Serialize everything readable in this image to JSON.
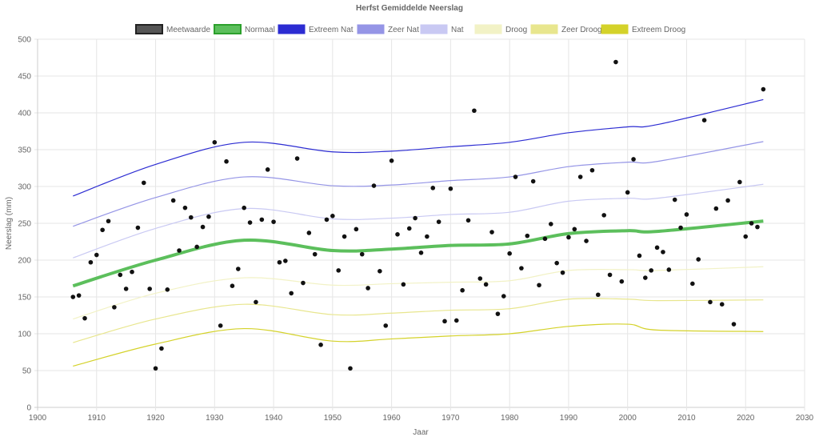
{
  "chart_data": {
    "type": "line",
    "title": "Herfst Gemiddelde Neerslag",
    "xlabel": "Jaar",
    "ylabel": "Neerslag (mm)",
    "xlim": [
      1900,
      2030
    ],
    "ylim": [
      0,
      500
    ],
    "x_ticks": [
      "1900",
      "1910",
      "1920",
      "1930",
      "1940",
      "1950",
      "1960",
      "1970",
      "1980",
      "1990",
      "2000",
      "2010",
      "2020",
      "2030"
    ],
    "y_ticks": [
      "0",
      "50",
      "100",
      "150",
      "200",
      "250",
      "300",
      "350",
      "400",
      "450",
      "500"
    ],
    "grid": true,
    "legend_placement": "top",
    "scatter": {
      "name": "Meetwaarde",
      "color": "#222222",
      "x": [
        1906,
        1907,
        1908,
        1909,
        1910,
        1911,
        1912,
        1913,
        1914,
        1915,
        1916,
        1917,
        1918,
        1919,
        1920,
        1921,
        1922,
        1923,
        1924,
        1925,
        1926,
        1927,
        1928,
        1929,
        1930,
        1931,
        1932,
        1933,
        1934,
        1935,
        1936,
        1937,
        1938,
        1939,
        1940,
        1941,
        1942,
        1943,
        1944,
        1945,
        1946,
        1947,
        1948,
        1949,
        1950,
        1951,
        1952,
        1953,
        1954,
        1955,
        1956,
        1957,
        1958,
        1959,
        1960,
        1961,
        1962,
        1963,
        1964,
        1965,
        1966,
        1967,
        1968,
        1969,
        1970,
        1971,
        1972,
        1973,
        1974,
        1975,
        1976,
        1977,
        1978,
        1979,
        1980,
        1981,
        1982,
        1983,
        1984,
        1985,
        1986,
        1987,
        1988,
        1989,
        1990,
        1991,
        1992,
        1993,
        1994,
        1995,
        1996,
        1997,
        1998,
        1999,
        2000,
        2001,
        2002,
        2003,
        2004,
        2005,
        2006,
        2007,
        2008,
        2009,
        2010,
        2011,
        2012,
        2013,
        2014,
        2015,
        2016,
        2017,
        2018,
        2019,
        2020,
        2021,
        2022,
        2023
      ],
      "y": [
        150,
        152,
        121,
        197,
        207,
        241,
        253,
        136,
        180,
        161,
        184,
        244,
        305,
        161,
        53,
        80,
        160,
        281,
        213,
        271,
        258,
        218,
        245,
        259,
        360,
        111,
        334,
        165,
        188,
        271,
        251,
        143,
        255,
        323,
        252,
        197,
        199,
        155,
        338,
        169,
        237,
        208,
        85,
        255,
        260,
        186,
        232,
        53,
        242,
        208,
        162,
        301,
        185,
        111,
        335,
        235,
        167,
        243,
        257,
        210,
        232,
        298,
        252,
        117,
        297,
        118,
        159,
        254,
        403,
        175,
        167,
        238,
        127,
        151,
        209,
        313,
        189,
        233,
        307,
        166,
        229,
        249,
        196,
        183,
        231,
        242,
        313,
        226,
        322,
        153,
        261,
        180,
        469,
        171,
        292,
        337,
        206,
        176,
        186,
        217,
        211,
        187,
        282,
        244,
        262,
        168,
        201,
        390,
        143,
        270,
        140,
        281,
        113,
        306,
        232,
        250,
        245,
        432
      ]
    },
    "curve_x": [
      1906,
      1920,
      1935,
      1950,
      1960,
      1970,
      1980,
      1990,
      2000,
      2005,
      2023
    ],
    "series": [
      {
        "name": "Normaal",
        "color": "#3cb43c",
        "values": [
          165,
          200,
          227,
          213,
          215,
          220,
          222,
          236,
          240,
          239,
          253
        ]
      },
      {
        "name": "Extreem Nat",
        "color": "#2c2cd2",
        "values": [
          287,
          330,
          360,
          347,
          348,
          354,
          360,
          373,
          381,
          384,
          418
        ]
      },
      {
        "name": "Zeer Nat",
        "color": "#9595e6",
        "values": [
          246,
          285,
          313,
          301,
          302,
          308,
          313,
          327,
          333,
          334,
          361
        ]
      },
      {
        "name": "Nat",
        "color": "#c9c9f3",
        "values": [
          203,
          243,
          270,
          256,
          257,
          262,
          265,
          280,
          284,
          284,
          303
        ]
      },
      {
        "name": "Droog",
        "color": "#f2f2c6",
        "values": [
          120,
          155,
          176,
          166,
          168,
          170,
          172,
          186,
          187,
          186,
          191
        ]
      },
      {
        "name": "Zeer Droog",
        "color": "#e8e68e",
        "values": [
          88,
          120,
          140,
          126,
          128,
          132,
          134,
          147,
          147,
          145,
          146
        ]
      },
      {
        "name": "Extreem Droog",
        "color": "#d4d22a",
        "values": [
          56,
          86,
          107,
          90,
          93,
          97,
          100,
          110,
          113,
          105,
          103
        ]
      }
    ],
    "legend": [
      "Meetwaarde",
      "Normaal",
      "Extreem Nat",
      "Zeer Nat",
      "Nat",
      "Droog",
      "Zeer Droog",
      "Extreem Droog"
    ]
  }
}
